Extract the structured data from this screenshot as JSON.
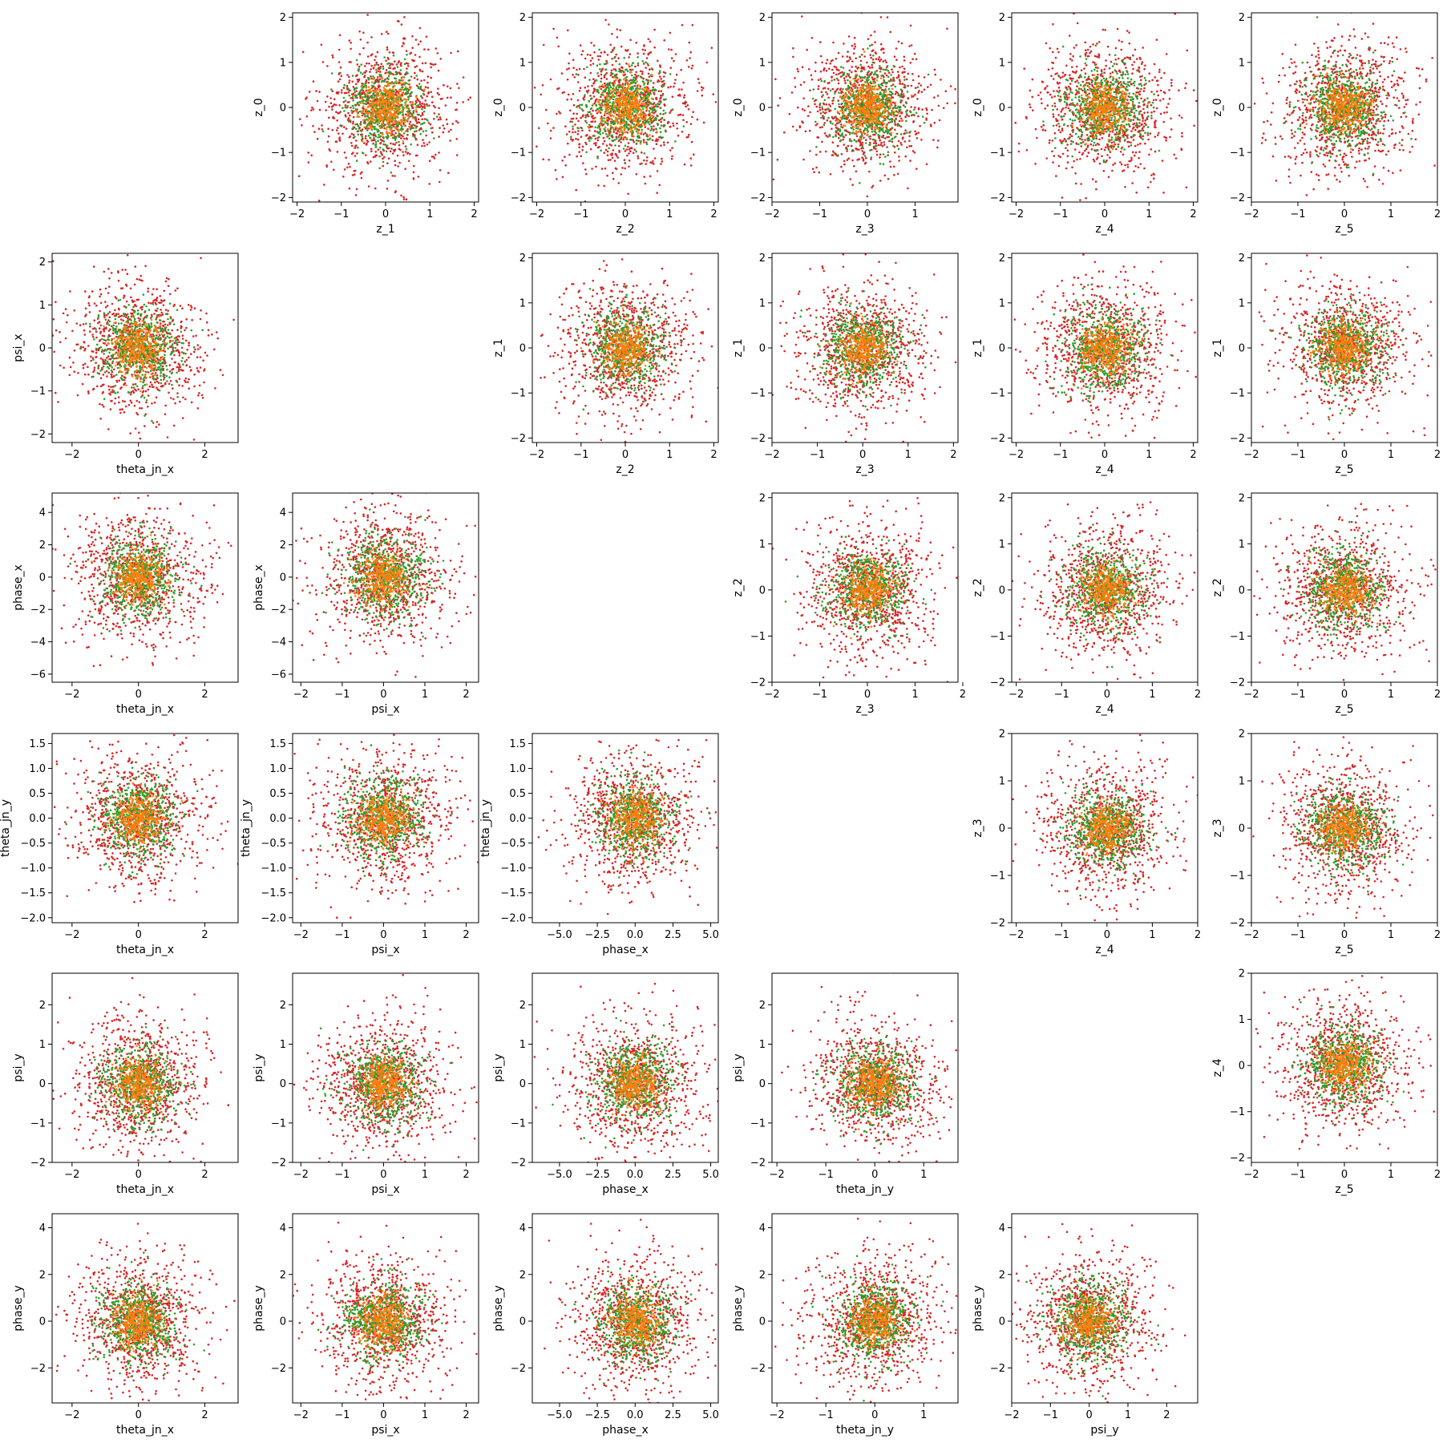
{
  "chart_data": {
    "type": "scatter",
    "layout": "corner-plot-grid",
    "rows": 6,
    "cols": 6,
    "grid": false,
    "legend": "none",
    "series": [
      {
        "color": "#d62728",
        "marker": "dot",
        "sd": 0.75
      },
      {
        "color": "#2ca02c",
        "marker": "dot",
        "sd": 0.45
      },
      {
        "color": "#ff7f0e",
        "marker": "dot",
        "sd": 0.28
      }
    ],
    "panels": [
      {
        "row": 0,
        "col": 1,
        "xlabel": "z_1",
        "ylabel": "z_0",
        "xlim": [
          -2.1,
          2.1
        ],
        "ylim": [
          -2.1,
          2.1
        ],
        "xticks": [
          -2,
          -1,
          0,
          1,
          2
        ],
        "yticks": [
          -2,
          -1,
          0,
          1,
          2
        ]
      },
      {
        "row": 0,
        "col": 2,
        "xlabel": "z_2",
        "ylabel": "z_0",
        "xlim": [
          -2.1,
          2.1
        ],
        "ylim": [
          -2.1,
          2.1
        ],
        "xticks": [
          -2,
          -1,
          0,
          1,
          2
        ],
        "yticks": [
          -2,
          -1,
          0,
          1,
          2
        ]
      },
      {
        "row": 0,
        "col": 3,
        "xlabel": "z_3",
        "ylabel": "z_0",
        "xlim": [
          -2.0,
          1.9
        ],
        "ylim": [
          -2.1,
          2.1
        ],
        "xticks": [
          -2,
          -1,
          0,
          1
        ],
        "yticks": [
          -2,
          -1,
          0,
          1,
          2
        ]
      },
      {
        "row": 0,
        "col": 4,
        "xlabel": "z_4",
        "ylabel": "z_0",
        "xlim": [
          -2.1,
          2.1
        ],
        "ylim": [
          -2.1,
          2.1
        ],
        "xticks": [
          -2,
          -1,
          0,
          1,
          2
        ],
        "yticks": [
          -2,
          -1,
          0,
          1,
          2
        ]
      },
      {
        "row": 0,
        "col": 5,
        "xlabel": "z_5",
        "ylabel": "z_0",
        "xlim": [
          -2.0,
          2.0
        ],
        "ylim": [
          -2.1,
          2.1
        ],
        "xticks": [
          -2,
          -1,
          0,
          1,
          2
        ],
        "yticks": [
          -2,
          -1,
          0,
          1,
          2
        ]
      },
      {
        "row": 1,
        "col": 0,
        "xlabel": "theta_jn_x",
        "ylabel": "psi_x",
        "xlim": [
          -2.6,
          3.0
        ],
        "ylim": [
          -2.2,
          2.2
        ],
        "xticks": [
          -2,
          0,
          2
        ],
        "yticks": [
          -2,
          -1,
          0,
          1,
          2
        ]
      },
      {
        "row": 1,
        "col": 2,
        "xlabel": "z_2",
        "ylabel": "z_1",
        "xlim": [
          -2.1,
          2.1
        ],
        "ylim": [
          -2.1,
          2.1
        ],
        "xticks": [
          -2,
          -1,
          0,
          1,
          2
        ],
        "yticks": [
          -2,
          -1,
          0,
          1,
          2
        ]
      },
      {
        "row": 1,
        "col": 3,
        "xlabel": "z_3",
        "ylabel": "z_1",
        "xlim": [
          -2.0,
          2.1
        ],
        "ylim": [
          -2.1,
          2.1
        ],
        "xticks": [
          -2,
          -1,
          0,
          1,
          2
        ],
        "yticks": [
          -2,
          -1,
          0,
          1,
          2
        ]
      },
      {
        "row": 1,
        "col": 4,
        "xlabel": "z_4",
        "ylabel": "z_1",
        "xlim": [
          -2.1,
          2.1
        ],
        "ylim": [
          -2.1,
          2.1
        ],
        "xticks": [
          -2,
          -1,
          0,
          1,
          2
        ],
        "yticks": [
          -2,
          -1,
          0,
          1,
          2
        ]
      },
      {
        "row": 1,
        "col": 5,
        "xlabel": "z_5",
        "ylabel": "z_1",
        "xlim": [
          -2.0,
          2.0
        ],
        "ylim": [
          -2.1,
          2.1
        ],
        "xticks": [
          -2,
          -1,
          0,
          1,
          2
        ],
        "yticks": [
          -2,
          -1,
          0,
          1,
          2
        ]
      },
      {
        "row": 2,
        "col": 0,
        "xlabel": "theta_jn_x",
        "ylabel": "phase_x",
        "xlim": [
          -2.6,
          3.0
        ],
        "ylim": [
          -6.5,
          5.2
        ],
        "xticks": [
          -2,
          0,
          2
        ],
        "yticks": [
          -6,
          -4,
          -2,
          0,
          2,
          4
        ]
      },
      {
        "row": 2,
        "col": 1,
        "xlabel": "psi_x",
        "ylabel": "phase_x",
        "xlim": [
          -2.2,
          2.3
        ],
        "ylim": [
          -6.5,
          5.2
        ],
        "xticks": [
          -2,
          -1,
          0,
          1,
          2
        ],
        "yticks": [
          -6,
          -4,
          -2,
          0,
          2,
          4
        ]
      },
      {
        "row": 2,
        "col": 3,
        "xlabel": "z_3",
        "ylabel": "z_2",
        "xlim": [
          -2.0,
          1.9
        ],
        "ylim": [
          -2.0,
          2.1
        ],
        "xticks": [
          -2,
          -1,
          0,
          1,
          2
        ],
        "yticks": [
          -2,
          -1,
          0,
          1,
          2
        ]
      },
      {
        "row": 2,
        "col": 4,
        "xlabel": "z_4",
        "ylabel": "z_2",
        "xlim": [
          -2.1,
          2.0
        ],
        "ylim": [
          -2.0,
          2.1
        ],
        "xticks": [
          -2,
          -1,
          0,
          1,
          2
        ],
        "yticks": [
          -2,
          -1,
          0,
          1,
          2
        ]
      },
      {
        "row": 2,
        "col": 5,
        "xlabel": "z_5",
        "ylabel": "z_2",
        "xlim": [
          -2.0,
          2.0
        ],
        "ylim": [
          -2.0,
          2.1
        ],
        "xticks": [
          -2,
          -1,
          0,
          1,
          2
        ],
        "yticks": [
          -2,
          -1,
          0,
          1,
          2
        ]
      },
      {
        "row": 3,
        "col": 0,
        "xlabel": "theta_jn_x",
        "ylabel": "theta_jn_y",
        "xlim": [
          -2.6,
          3.0
        ],
        "ylim": [
          -2.1,
          1.7
        ],
        "xticks": [
          -2,
          0,
          2
        ],
        "yticks": [
          -2.0,
          -1.5,
          -1.0,
          -0.5,
          0.0,
          0.5,
          1.0,
          1.5
        ]
      },
      {
        "row": 3,
        "col": 1,
        "xlabel": "psi_x",
        "ylabel": "theta_jn_y",
        "xlim": [
          -2.2,
          2.3
        ],
        "ylim": [
          -2.1,
          1.7
        ],
        "xticks": [
          -2,
          -1,
          0,
          1,
          2
        ],
        "yticks": [
          -2.0,
          -1.5,
          -1.0,
          -0.5,
          0.0,
          0.5,
          1.0,
          1.5
        ]
      },
      {
        "row": 3,
        "col": 2,
        "xlabel": "phase_x",
        "ylabel": "theta_jn_y",
        "xlim": [
          -6.8,
          5.5
        ],
        "ylim": [
          -2.1,
          1.7
        ],
        "xticks": [
          -5.0,
          -2.5,
          0.0,
          2.5,
          5.0
        ],
        "yticks": [
          -2.0,
          -1.5,
          -1.0,
          -0.5,
          0.0,
          0.5,
          1.0,
          1.5
        ]
      },
      {
        "row": 3,
        "col": 4,
        "xlabel": "z_4",
        "ylabel": "z_3",
        "xlim": [
          -2.1,
          2.0
        ],
        "ylim": [
          -2.0,
          2.0
        ],
        "xticks": [
          -2,
          -1,
          0,
          1,
          2
        ],
        "yticks": [
          -2,
          -1,
          0,
          1,
          2
        ]
      },
      {
        "row": 3,
        "col": 5,
        "xlabel": "z_5",
        "ylabel": "z_3",
        "xlim": [
          -2.0,
          2.0
        ],
        "ylim": [
          -2.0,
          2.0
        ],
        "xticks": [
          -2,
          -1,
          0,
          1,
          2
        ],
        "yticks": [
          -2,
          -1,
          0,
          1,
          2
        ]
      },
      {
        "row": 4,
        "col": 0,
        "xlabel": "theta_jn_x",
        "ylabel": "psi_y",
        "xlim": [
          -2.6,
          3.0
        ],
        "ylim": [
          -2.0,
          2.8
        ],
        "xticks": [
          -2,
          0,
          2
        ],
        "yticks": [
          -2,
          -1,
          0,
          1,
          2
        ]
      },
      {
        "row": 4,
        "col": 1,
        "xlabel": "psi_x",
        "ylabel": "psi_y",
        "xlim": [
          -2.2,
          2.3
        ],
        "ylim": [
          -2.0,
          2.8
        ],
        "xticks": [
          -2,
          -1,
          0,
          1,
          2
        ],
        "yticks": [
          -2,
          -1,
          0,
          1,
          2
        ]
      },
      {
        "row": 4,
        "col": 2,
        "xlabel": "phase_x",
        "ylabel": "psi_y",
        "xlim": [
          -6.8,
          5.5
        ],
        "ylim": [
          -2.0,
          2.8
        ],
        "xticks": [
          -5.0,
          -2.5,
          0.0,
          2.5,
          5.0
        ],
        "yticks": [
          -2,
          -1,
          0,
          1,
          2
        ]
      },
      {
        "row": 4,
        "col": 3,
        "xlabel": "theta_jn_y",
        "ylabel": "psi_y",
        "xlim": [
          -2.1,
          1.7
        ],
        "ylim": [
          -2.0,
          2.8
        ],
        "xticks": [
          -2,
          -1,
          0,
          1
        ],
        "yticks": [
          -2,
          -1,
          0,
          1,
          2
        ]
      },
      {
        "row": 4,
        "col": 5,
        "xlabel": "z_5",
        "ylabel": "z_4",
        "xlim": [
          -2.0,
          2.0
        ],
        "ylim": [
          -2.1,
          2.0
        ],
        "xticks": [
          -2,
          -1,
          0,
          1,
          2
        ],
        "yticks": [
          -2,
          -1,
          0,
          1,
          2
        ]
      },
      {
        "row": 5,
        "col": 0,
        "xlabel": "theta_jn_x",
        "ylabel": "phase_y",
        "xlim": [
          -2.6,
          3.0
        ],
        "ylim": [
          -3.5,
          4.6
        ],
        "xticks": [
          -2,
          0,
          2
        ],
        "yticks": [
          -2,
          0,
          2,
          4
        ]
      },
      {
        "row": 5,
        "col": 1,
        "xlabel": "psi_x",
        "ylabel": "phase_y",
        "xlim": [
          -2.2,
          2.3
        ],
        "ylim": [
          -3.5,
          4.6
        ],
        "xticks": [
          -2,
          -1,
          0,
          1,
          2
        ],
        "yticks": [
          -2,
          0,
          2,
          4
        ]
      },
      {
        "row": 5,
        "col": 2,
        "xlabel": "phase_x",
        "ylabel": "phase_y",
        "xlim": [
          -6.8,
          5.5
        ],
        "ylim": [
          -3.5,
          4.6
        ],
        "xticks": [
          -5.0,
          -2.5,
          0.0,
          2.5,
          5.0
        ],
        "yticks": [
          -2,
          0,
          2,
          4
        ]
      },
      {
        "row": 5,
        "col": 3,
        "xlabel": "theta_jn_y",
        "ylabel": "phase_y",
        "xlim": [
          -2.1,
          1.7
        ],
        "ylim": [
          -3.5,
          4.6
        ],
        "xticks": [
          -2,
          -1,
          0,
          1
        ],
        "yticks": [
          -2,
          0,
          2,
          4
        ]
      },
      {
        "row": 5,
        "col": 4,
        "xlabel": "psi_y",
        "ylabel": "phase_y",
        "xlim": [
          -2.0,
          2.8
        ],
        "ylim": [
          -3.5,
          4.6
        ],
        "xticks": [
          -2,
          -1,
          0,
          1,
          2
        ],
        "yticks": [
          -2,
          0,
          2,
          4
        ]
      }
    ]
  }
}
